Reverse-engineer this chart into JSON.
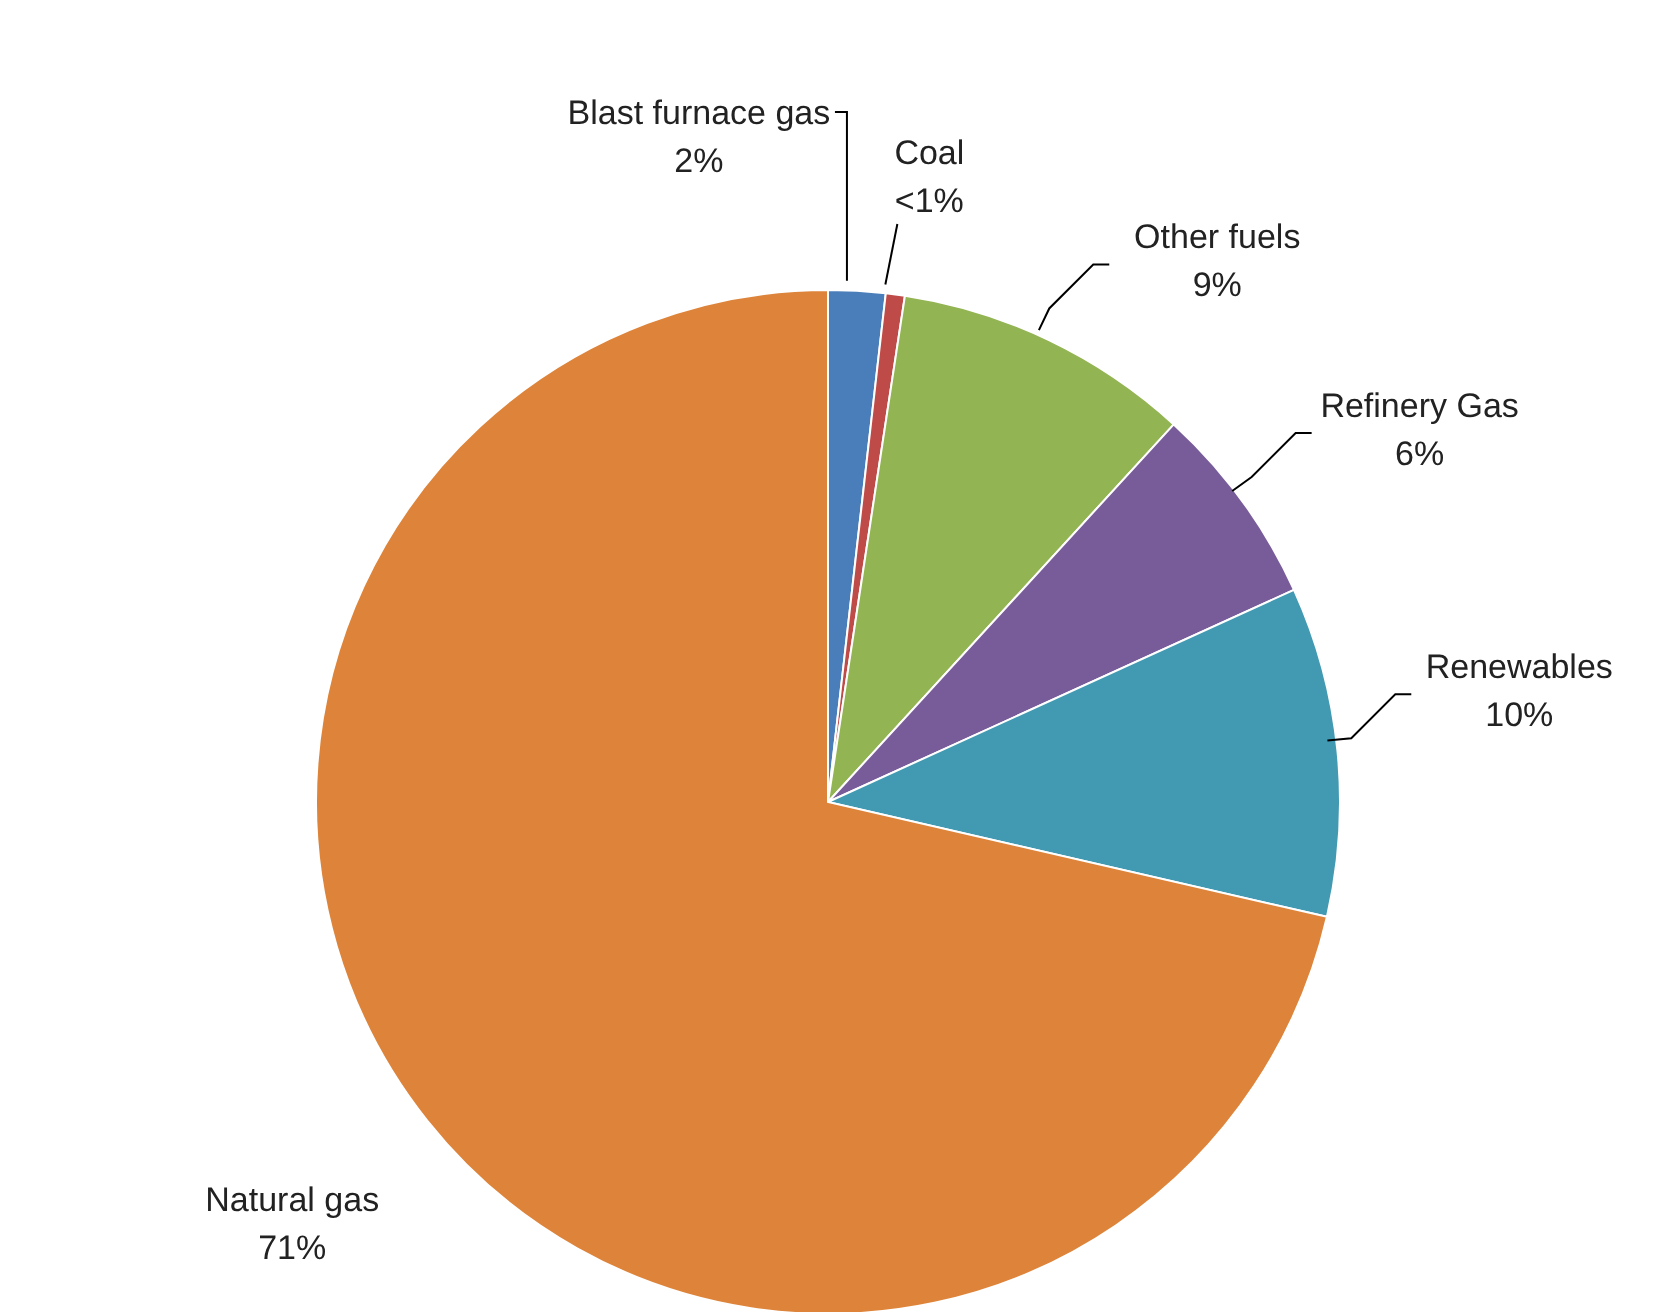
{
  "chart_data": {
    "type": "pie",
    "categories": [
      "Blast furnace gas",
      "Coal",
      "Other fuels",
      "Refinery Gas",
      "Renewables",
      "Natural gas"
    ],
    "values": [
      1.8,
      0.6,
      9.4,
      6.4,
      10.4,
      71.4
    ],
    "value_labels": [
      "2%",
      "<1%",
      "9%",
      "6%",
      "10%",
      "71%"
    ],
    "colors": [
      "#4a7ebb",
      "#be4b48",
      "#93b452",
      "#785c9a",
      "#4299b2",
      "#dd843a"
    ]
  }
}
